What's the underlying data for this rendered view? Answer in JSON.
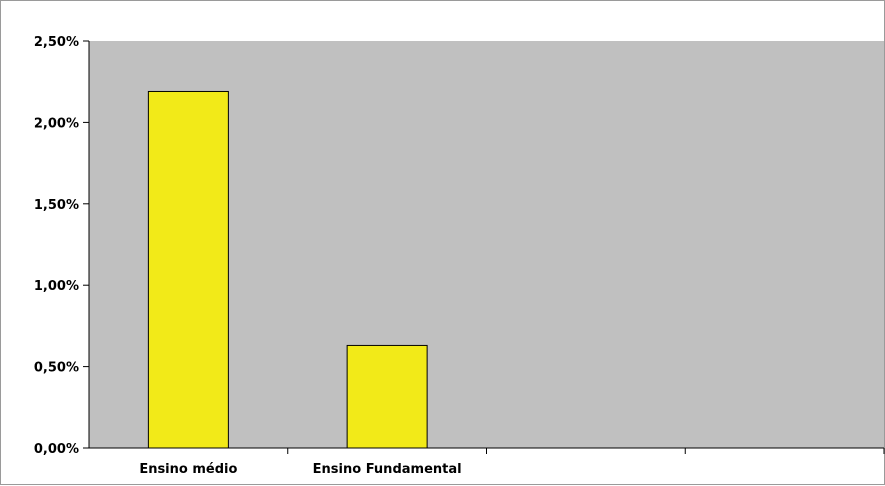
{
  "chart_data": {
    "type": "bar",
    "categories": [
      "Ensino médio",
      "Ensino Fundamental",
      "",
      ""
    ],
    "values": [
      2.19,
      0.63,
      null,
      null
    ],
    "value_unit": "%",
    "ylim": [
      0,
      2.5
    ],
    "yticks": [
      "0,00%",
      "0,50%",
      "1,00%",
      "1,50%",
      "2,00%",
      "2,50%"
    ],
    "title": "",
    "xlabel": "",
    "ylabel": "",
    "grid": false,
    "legend": "none",
    "colors": {
      "bar": "#f2ea18",
      "plot_background": "#c0c0c0",
      "bar_outline": "#000000"
    }
  }
}
